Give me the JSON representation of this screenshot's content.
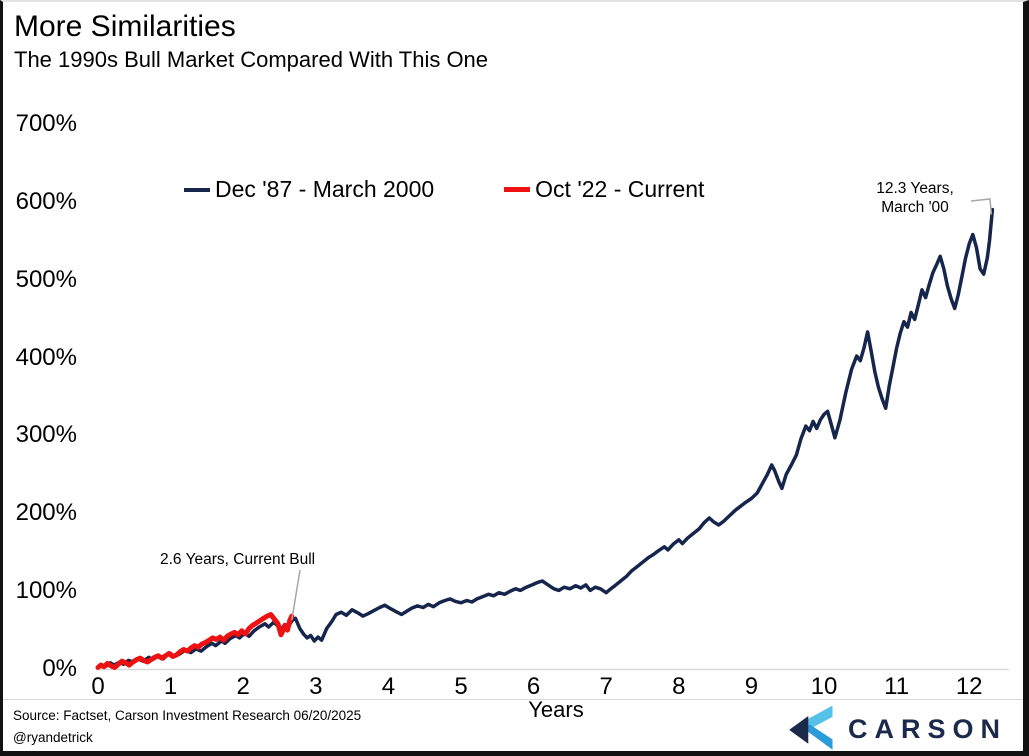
{
  "header": {
    "title": "More Similarities",
    "subtitle": "The 1990s Bull Market Compared With This One"
  },
  "footer": {
    "source_line": "Source: Factset, Carson Investment Research 06/20/2025",
    "handle": "@ryandetrick",
    "logo_text": "CARSON"
  },
  "colors": {
    "navy_series": "#16254c",
    "red_series": "#ee1111",
    "axis_line": "#d9d9d9",
    "leader_line": "#a6a6a6",
    "logo_navy": "#1b2a4a",
    "logo_light_blue": "#56c1e8",
    "logo_mid_blue": "#2b9cd8"
  },
  "chart_data": {
    "type": "line",
    "title": "More Similarities",
    "subtitle": "The 1990s Bull Market Compared With This One",
    "xlabel": "Years",
    "ylabel": "",
    "xlim": [
      0,
      12.5
    ],
    "ylim": [
      0,
      700
    ],
    "grid": false,
    "legend_position": "top-center",
    "x_ticks": [
      0,
      1,
      2,
      3,
      4,
      5,
      6,
      7,
      8,
      9,
      10,
      11,
      12
    ],
    "y_ticks": [
      {
        "value": 0,
        "label": "0%"
      },
      {
        "value": 100,
        "label": "100%"
      },
      {
        "value": 200,
        "label": "200%"
      },
      {
        "value": 300,
        "label": "300%"
      },
      {
        "value": 400,
        "label": "400%"
      },
      {
        "value": 500,
        "label": "500%"
      },
      {
        "value": 600,
        "label": "600%"
      },
      {
        "value": 700,
        "label": "700%"
      }
    ],
    "series": [
      {
        "name": "Dec '87 - March 2000",
        "color": "#16254c",
        "points": [
          [
            0,
            2
          ],
          [
            0.05,
            5
          ],
          [
            0.1,
            3
          ],
          [
            0.17,
            8
          ],
          [
            0.22,
            5
          ],
          [
            0.3,
            9
          ],
          [
            0.35,
            6
          ],
          [
            0.42,
            11
          ],
          [
            0.5,
            9
          ],
          [
            0.55,
            13
          ],
          [
            0.62,
            10
          ],
          [
            0.7,
            15
          ],
          [
            0.75,
            12
          ],
          [
            0.82,
            16
          ],
          [
            0.9,
            13
          ],
          [
            0.95,
            18
          ],
          [
            1,
            20
          ],
          [
            1.05,
            16
          ],
          [
            1.12,
            19
          ],
          [
            1.2,
            24
          ],
          [
            1.28,
            21
          ],
          [
            1.35,
            26
          ],
          [
            1.42,
            23
          ],
          [
            1.5,
            29
          ],
          [
            1.57,
            33
          ],
          [
            1.62,
            30
          ],
          [
            1.7,
            36
          ],
          [
            1.75,
            33
          ],
          [
            1.82,
            39
          ],
          [
            1.9,
            43
          ],
          [
            1.95,
            40
          ],
          [
            2.02,
            46
          ],
          [
            2.08,
            42
          ],
          [
            2.15,
            49
          ],
          [
            2.22,
            54
          ],
          [
            2.3,
            58
          ],
          [
            2.35,
            54
          ],
          [
            2.42,
            60
          ],
          [
            2.47,
            56
          ],
          [
            2.52,
            50
          ],
          [
            2.57,
            57
          ],
          [
            2.62,
            54
          ],
          [
            2.67,
            62
          ],
          [
            2.72,
            65
          ],
          [
            2.78,
            52
          ],
          [
            2.83,
            45
          ],
          [
            2.88,
            40
          ],
          [
            2.93,
            43
          ],
          [
            2.98,
            36
          ],
          [
            3.03,
            41
          ],
          [
            3.08,
            37
          ],
          [
            3.15,
            52
          ],
          [
            3.22,
            61
          ],
          [
            3.28,
            70
          ],
          [
            3.35,
            73
          ],
          [
            3.42,
            69
          ],
          [
            3.5,
            76
          ],
          [
            3.58,
            72
          ],
          [
            3.65,
            68
          ],
          [
            3.72,
            71
          ],
          [
            3.8,
            75
          ],
          [
            3.88,
            79
          ],
          [
            3.95,
            82
          ],
          [
            4.02,
            78
          ],
          [
            4.1,
            74
          ],
          [
            4.18,
            70
          ],
          [
            4.25,
            74
          ],
          [
            4.32,
            78
          ],
          [
            4.4,
            81
          ],
          [
            4.48,
            79
          ],
          [
            4.55,
            83
          ],
          [
            4.62,
            80
          ],
          [
            4.7,
            85
          ],
          [
            4.78,
            88
          ],
          [
            4.85,
            90
          ],
          [
            4.92,
            87
          ],
          [
            5,
            85
          ],
          [
            5.08,
            88
          ],
          [
            5.15,
            86
          ],
          [
            5.22,
            90
          ],
          [
            5.3,
            93
          ],
          [
            5.38,
            96
          ],
          [
            5.45,
            94
          ],
          [
            5.52,
            98
          ],
          [
            5.6,
            96
          ],
          [
            5.68,
            100
          ],
          [
            5.75,
            103
          ],
          [
            5.82,
            101
          ],
          [
            5.9,
            105
          ],
          [
            5.98,
            108
          ],
          [
            6.05,
            111
          ],
          [
            6.12,
            113
          ],
          [
            6.2,
            108
          ],
          [
            6.28,
            103
          ],
          [
            6.35,
            101
          ],
          [
            6.42,
            105
          ],
          [
            6.5,
            103
          ],
          [
            6.58,
            107
          ],
          [
            6.65,
            104
          ],
          [
            6.72,
            108
          ],
          [
            6.78,
            101
          ],
          [
            6.85,
            105
          ],
          [
            6.92,
            103
          ],
          [
            7,
            98
          ],
          [
            7.05,
            102
          ],
          [
            7.12,
            107
          ],
          [
            7.2,
            113
          ],
          [
            7.28,
            119
          ],
          [
            7.35,
            126
          ],
          [
            7.42,
            131
          ],
          [
            7.5,
            137
          ],
          [
            7.58,
            143
          ],
          [
            7.65,
            147
          ],
          [
            7.72,
            152
          ],
          [
            7.8,
            157
          ],
          [
            7.85,
            153
          ],
          [
            7.92,
            160
          ],
          [
            8,
            166
          ],
          [
            8.05,
            161
          ],
          [
            8.12,
            168
          ],
          [
            8.2,
            174
          ],
          [
            8.28,
            180
          ],
          [
            8.35,
            188
          ],
          [
            8.42,
            194
          ],
          [
            8.48,
            189
          ],
          [
            8.55,
            185
          ],
          [
            8.62,
            190
          ],
          [
            8.7,
            197
          ],
          [
            8.78,
            204
          ],
          [
            8.85,
            209
          ],
          [
            8.92,
            214
          ],
          [
            9,
            219
          ],
          [
            9.08,
            226
          ],
          [
            9.15,
            238
          ],
          [
            9.22,
            250
          ],
          [
            9.28,
            262
          ],
          [
            9.32,
            255
          ],
          [
            9.38,
            240
          ],
          [
            9.42,
            232
          ],
          [
            9.48,
            250
          ],
          [
            9.55,
            262
          ],
          [
            9.62,
            275
          ],
          [
            9.68,
            295
          ],
          [
            9.75,
            312
          ],
          [
            9.8,
            306
          ],
          [
            9.85,
            318
          ],
          [
            9.9,
            309
          ],
          [
            9.95,
            320
          ],
          [
            10,
            327
          ],
          [
            10.05,
            331
          ],
          [
            10.1,
            314
          ],
          [
            10.15,
            297
          ],
          [
            10.22,
            320
          ],
          [
            10.3,
            355
          ],
          [
            10.38,
            385
          ],
          [
            10.45,
            402
          ],
          [
            10.5,
            396
          ],
          [
            10.55,
            412
          ],
          [
            10.6,
            433
          ],
          [
            10.65,
            408
          ],
          [
            10.7,
            382
          ],
          [
            10.75,
            362
          ],
          [
            10.8,
            347
          ],
          [
            10.85,
            335
          ],
          [
            10.9,
            364
          ],
          [
            10.95,
            388
          ],
          [
            11,
            412
          ],
          [
            11.05,
            431
          ],
          [
            11.1,
            446
          ],
          [
            11.15,
            439
          ],
          [
            11.2,
            458
          ],
          [
            11.25,
            449
          ],
          [
            11.3,
            468
          ],
          [
            11.35,
            487
          ],
          [
            11.4,
            477
          ],
          [
            11.45,
            494
          ],
          [
            11.5,
            509
          ],
          [
            11.55,
            519
          ],
          [
            11.6,
            530
          ],
          [
            11.65,
            514
          ],
          [
            11.7,
            492
          ],
          [
            11.75,
            476
          ],
          [
            11.8,
            463
          ],
          [
            11.85,
            481
          ],
          [
            11.9,
            504
          ],
          [
            11.95,
            528
          ],
          [
            12,
            546
          ],
          [
            12.05,
            558
          ],
          [
            12.1,
            541
          ],
          [
            12.15,
            514
          ],
          [
            12.2,
            507
          ],
          [
            12.25,
            528
          ],
          [
            12.28,
            550
          ],
          [
            12.32,
            590
          ]
        ]
      },
      {
        "name": "Oct '22 - Current",
        "color": "#ee1111",
        "points": [
          [
            0,
            2
          ],
          [
            0.04,
            5
          ],
          [
            0.08,
            3
          ],
          [
            0.13,
            7
          ],
          [
            0.18,
            4
          ],
          [
            0.23,
            2
          ],
          [
            0.28,
            6
          ],
          [
            0.33,
            10
          ],
          [
            0.38,
            8
          ],
          [
            0.43,
            5
          ],
          [
            0.48,
            9
          ],
          [
            0.53,
            12
          ],
          [
            0.58,
            14
          ],
          [
            0.63,
            11
          ],
          [
            0.68,
            9
          ],
          [
            0.73,
            12
          ],
          [
            0.78,
            15
          ],
          [
            0.83,
            17
          ],
          [
            0.88,
            14
          ],
          [
            0.93,
            17
          ],
          [
            0.98,
            20
          ],
          [
            1.03,
            16
          ],
          [
            1.08,
            18
          ],
          [
            1.13,
            22
          ],
          [
            1.18,
            25
          ],
          [
            1.23,
            23
          ],
          [
            1.28,
            27
          ],
          [
            1.33,
            30
          ],
          [
            1.38,
            28
          ],
          [
            1.43,
            32
          ],
          [
            1.48,
            34
          ],
          [
            1.53,
            37
          ],
          [
            1.58,
            40
          ],
          [
            1.63,
            38
          ],
          [
            1.68,
            41
          ],
          [
            1.73,
            37
          ],
          [
            1.78,
            42
          ],
          [
            1.83,
            45
          ],
          [
            1.88,
            47
          ],
          [
            1.93,
            44
          ],
          [
            1.98,
            49
          ],
          [
            2.03,
            45
          ],
          [
            2.08,
            52
          ],
          [
            2.13,
            56
          ],
          [
            2.18,
            59
          ],
          [
            2.23,
            62
          ],
          [
            2.28,
            65
          ],
          [
            2.33,
            68
          ],
          [
            2.38,
            70
          ],
          [
            2.43,
            64
          ],
          [
            2.48,
            58
          ],
          [
            2.52,
            44
          ],
          [
            2.55,
            50
          ],
          [
            2.58,
            56
          ],
          [
            2.61,
            50
          ],
          [
            2.64,
            62
          ],
          [
            2.67,
            68
          ]
        ]
      }
    ],
    "annotations": [
      {
        "id": "current-bull",
        "text": "2.6 Years, Current Bull",
        "target": {
          "year": 2.67,
          "pct": 68
        }
      },
      {
        "id": "march-00",
        "line1": "12.3 Years,",
        "line2": "March '00",
        "target": {
          "year": 12.32,
          "pct": 590
        }
      }
    ]
  }
}
